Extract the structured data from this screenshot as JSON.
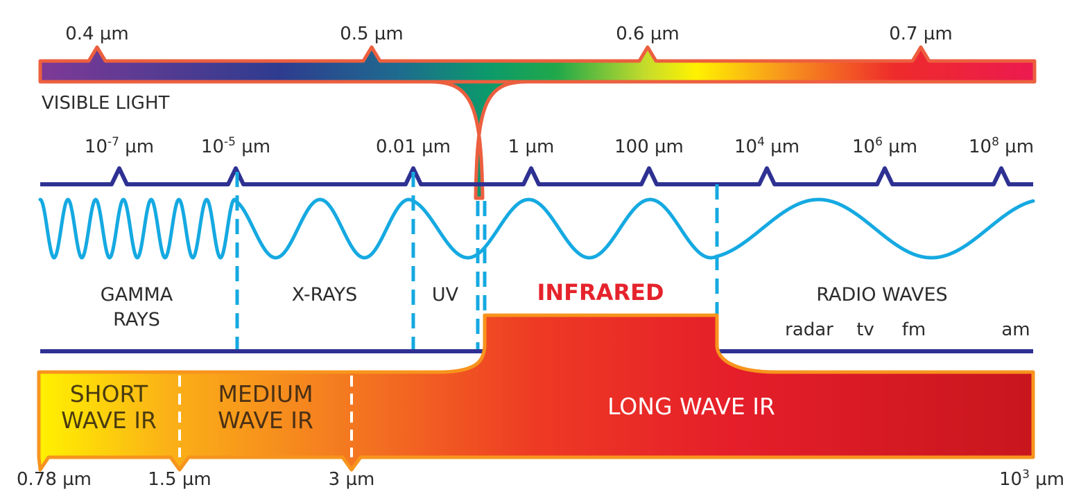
{
  "visible_light": {
    "label": "VISIBLE LIGHT",
    "ticks": [
      "0.4 µm",
      "0.5 µm",
      "0.6 µm",
      "0.7 µm"
    ]
  },
  "scale": {
    "ticks": [
      {
        "base": "10",
        "exp": "-7",
        "unit": " µm"
      },
      {
        "base": "10",
        "exp": "-5",
        "unit": " µm"
      },
      {
        "base": "0.01 µm",
        "exp": "",
        "unit": ""
      },
      {
        "base": "1 µm",
        "exp": "",
        "unit": ""
      },
      {
        "base": "100 µm",
        "exp": "",
        "unit": ""
      },
      {
        "base": "10",
        "exp": "4",
        "unit": " µm"
      },
      {
        "base": "10",
        "exp": "6",
        "unit": " µm"
      },
      {
        "base": "10",
        "exp": "8",
        "unit": " µm"
      }
    ]
  },
  "regions": {
    "gamma_line1": "GAMMA",
    "gamma_line2": "RAYS",
    "xrays": "X-RAYS",
    "uv": "UV",
    "infrared": "INFRARED",
    "radio": "RADIO WAVES",
    "radio_sub": [
      "radar",
      "tv",
      "fm",
      "am"
    ]
  },
  "ir_band": {
    "short_line1": "SHORT",
    "short_line2": "WAVE IR",
    "medium_line1": "MEDIUM",
    "medium_line2": "WAVE IR",
    "long": "LONG WAVE IR",
    "bottom_ticks": [
      {
        "base": "0.78 µm",
        "exp": "",
        "unit": ""
      },
      {
        "base": "1.5 µm",
        "exp": "",
        "unit": ""
      },
      {
        "base": "3 µm",
        "exp": "",
        "unit": ""
      },
      {
        "base": "10",
        "exp": "3",
        "unit": " µm"
      }
    ]
  },
  "colors": {
    "scale_line": "#2e3192",
    "wave": "#15a9e1",
    "outline": "#ec5f3f",
    "infrared_text": "#e5232c",
    "ir_outline": "#f7941d"
  }
}
